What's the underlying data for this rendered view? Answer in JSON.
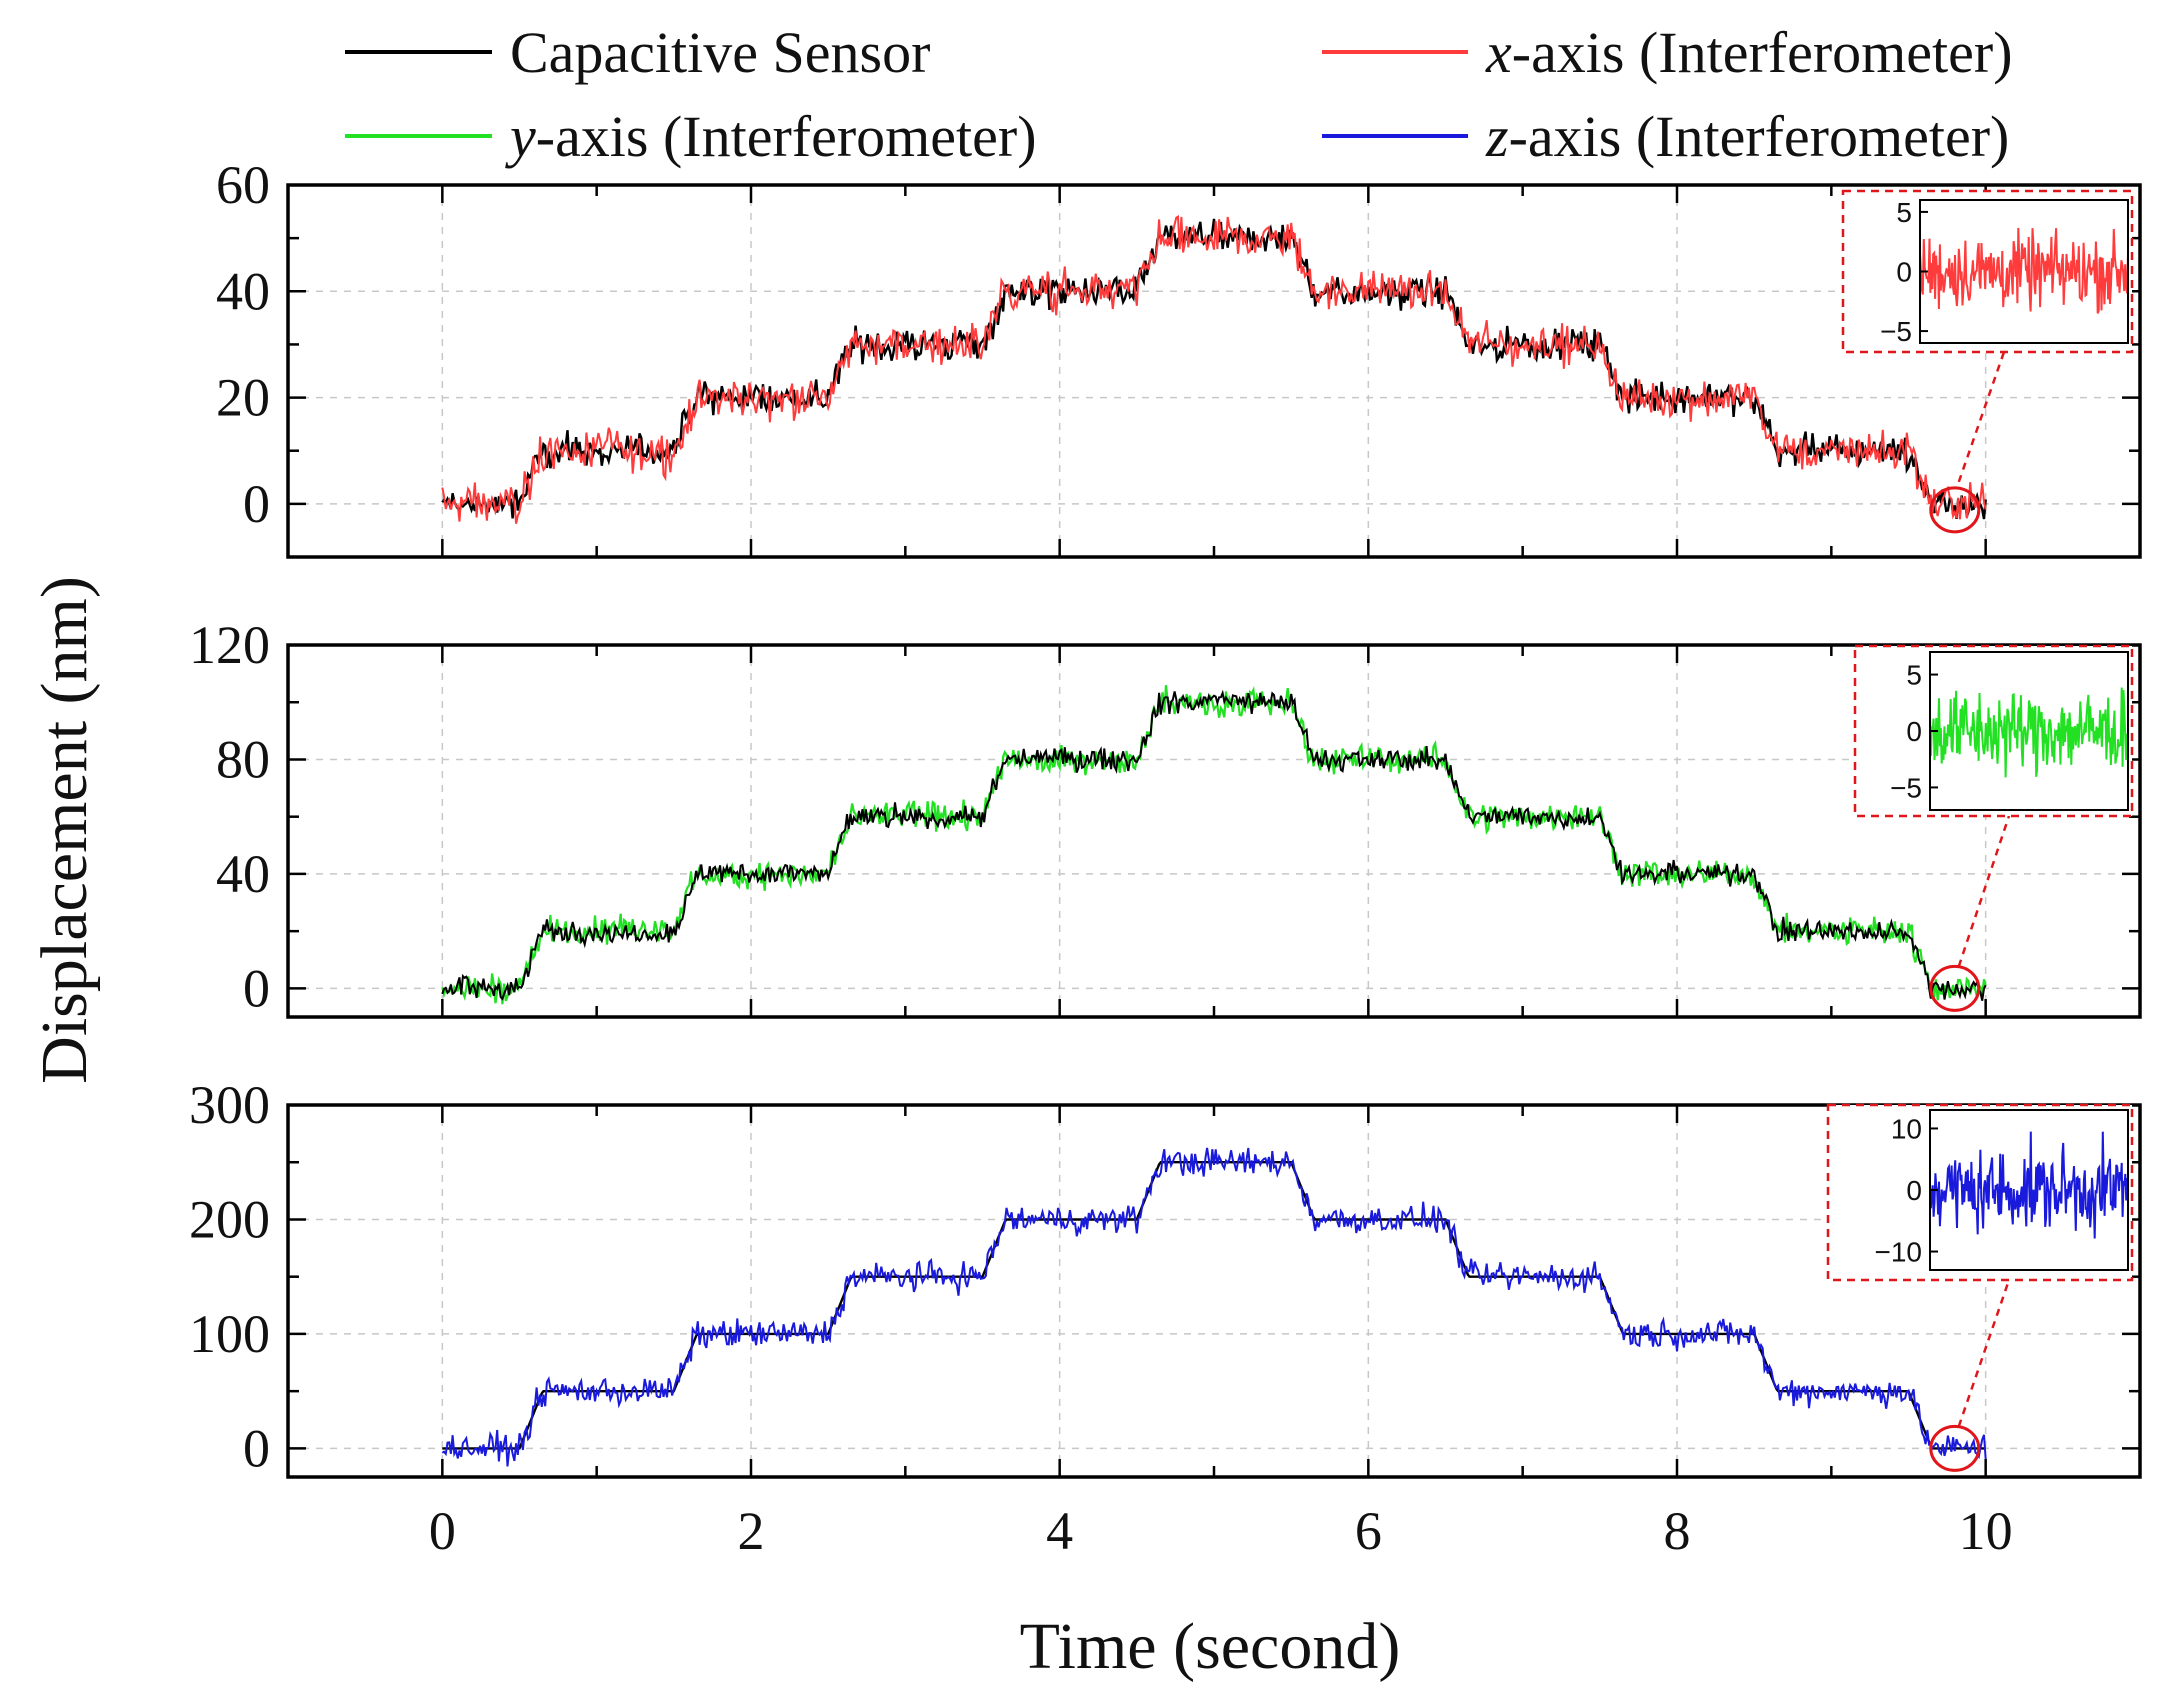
{
  "chart_data": {
    "type": "line",
    "xlabel": "Time (second)",
    "ylabel": "Displacement (nm)",
    "xlim": [
      -1,
      11
    ],
    "x_ticks": [
      0,
      2,
      4,
      6,
      8,
      10
    ],
    "x_tick_labels": [
      "0",
      "2",
      "4",
      "6",
      "8",
      "10"
    ],
    "grid": true,
    "legend": [
      {
        "name": "Capacitive Sensor",
        "italic_prefix": "",
        "rest": "Capacitive Sensor",
        "color": "#000000"
      },
      {
        "name": "x-axis (Interferometer)",
        "italic_prefix": "x",
        "rest": "-axis (Interferometer)",
        "color": "#ff3b3b"
      },
      {
        "name": "y-axis (Interferometer)",
        "italic_prefix": "y",
        "rest": "-axis (Interferometer)",
        "color": "#22e022"
      },
      {
        "name": "z-axis (Interferometer)",
        "italic_prefix": "z",
        "rest": "-axis (Interferometer)",
        "color": "#1a1adc"
      }
    ],
    "panels": [
      {
        "id": "x",
        "series": "x-axis (Interferometer)",
        "color": "#ff3b3b",
        "ylim": [
          -10,
          60
        ],
        "y_ticks": [
          0,
          20,
          40,
          60
        ],
        "y_tick_labels": [
          "0",
          "20",
          "40",
          "60"
        ],
        "steps_time": [
          0,
          0.5,
          1.5,
          2.5,
          3.5,
          4.5,
          5.5,
          6.5,
          7.5,
          8.5,
          9.5,
          10
        ],
        "steps_level": [
          0,
          10,
          20,
          30,
          40,
          50,
          40,
          30,
          20,
          10,
          0
        ],
        "noise_amplitude": 3,
        "zoom_circle": [
          9.8,
          0
        ],
        "inset": {
          "ylim": [
            -6,
            6
          ],
          "y_ticks": [
            5,
            0,
            -5
          ],
          "y_tick_labels": [
            "5",
            "0",
            "−5"
          ]
        }
      },
      {
        "id": "y",
        "series": "y-axis (Interferometer)",
        "color": "#22e022",
        "ylim": [
          -10,
          120
        ],
        "y_ticks": [
          0,
          40,
          80,
          120
        ],
        "y_tick_labels": [
          "0",
          "40",
          "80",
          "120"
        ],
        "steps_time": [
          0,
          0.5,
          1.5,
          2.5,
          3.5,
          4.5,
          5.5,
          6.5,
          7.5,
          8.5,
          9.5,
          10
        ],
        "steps_level": [
          0,
          20,
          40,
          60,
          80,
          100,
          80,
          60,
          40,
          20,
          0
        ],
        "noise_amplitude": 4,
        "zoom_circle": [
          9.8,
          0
        ],
        "inset": {
          "ylim": [
            -7,
            7
          ],
          "y_ticks": [
            5,
            0,
            -5
          ],
          "y_tick_labels": [
            "5",
            "0",
            "−5"
          ]
        }
      },
      {
        "id": "z",
        "series": "z-axis (Interferometer)",
        "color": "#1a1adc",
        "ylim": [
          -25,
          300
        ],
        "y_ticks": [
          0,
          100,
          200,
          300
        ],
        "y_tick_labels": [
          "0",
          "100",
          "200",
          "300"
        ],
        "steps_time": [
          0,
          0.5,
          1.5,
          2.5,
          3.5,
          4.5,
          5.5,
          6.5,
          7.5,
          8.5,
          9.5,
          10
        ],
        "steps_level": [
          0,
          50,
          100,
          150,
          200,
          250,
          200,
          150,
          100,
          50,
          0
        ],
        "noise_amplitude": 10,
        "zoom_circle": [
          9.8,
          0
        ],
        "inset": {
          "ylim": [
            -13,
            13
          ],
          "y_ticks": [
            10,
            0,
            -10
          ],
          "y_tick_labels": [
            "10",
            "0",
            "−10"
          ]
        }
      }
    ]
  }
}
